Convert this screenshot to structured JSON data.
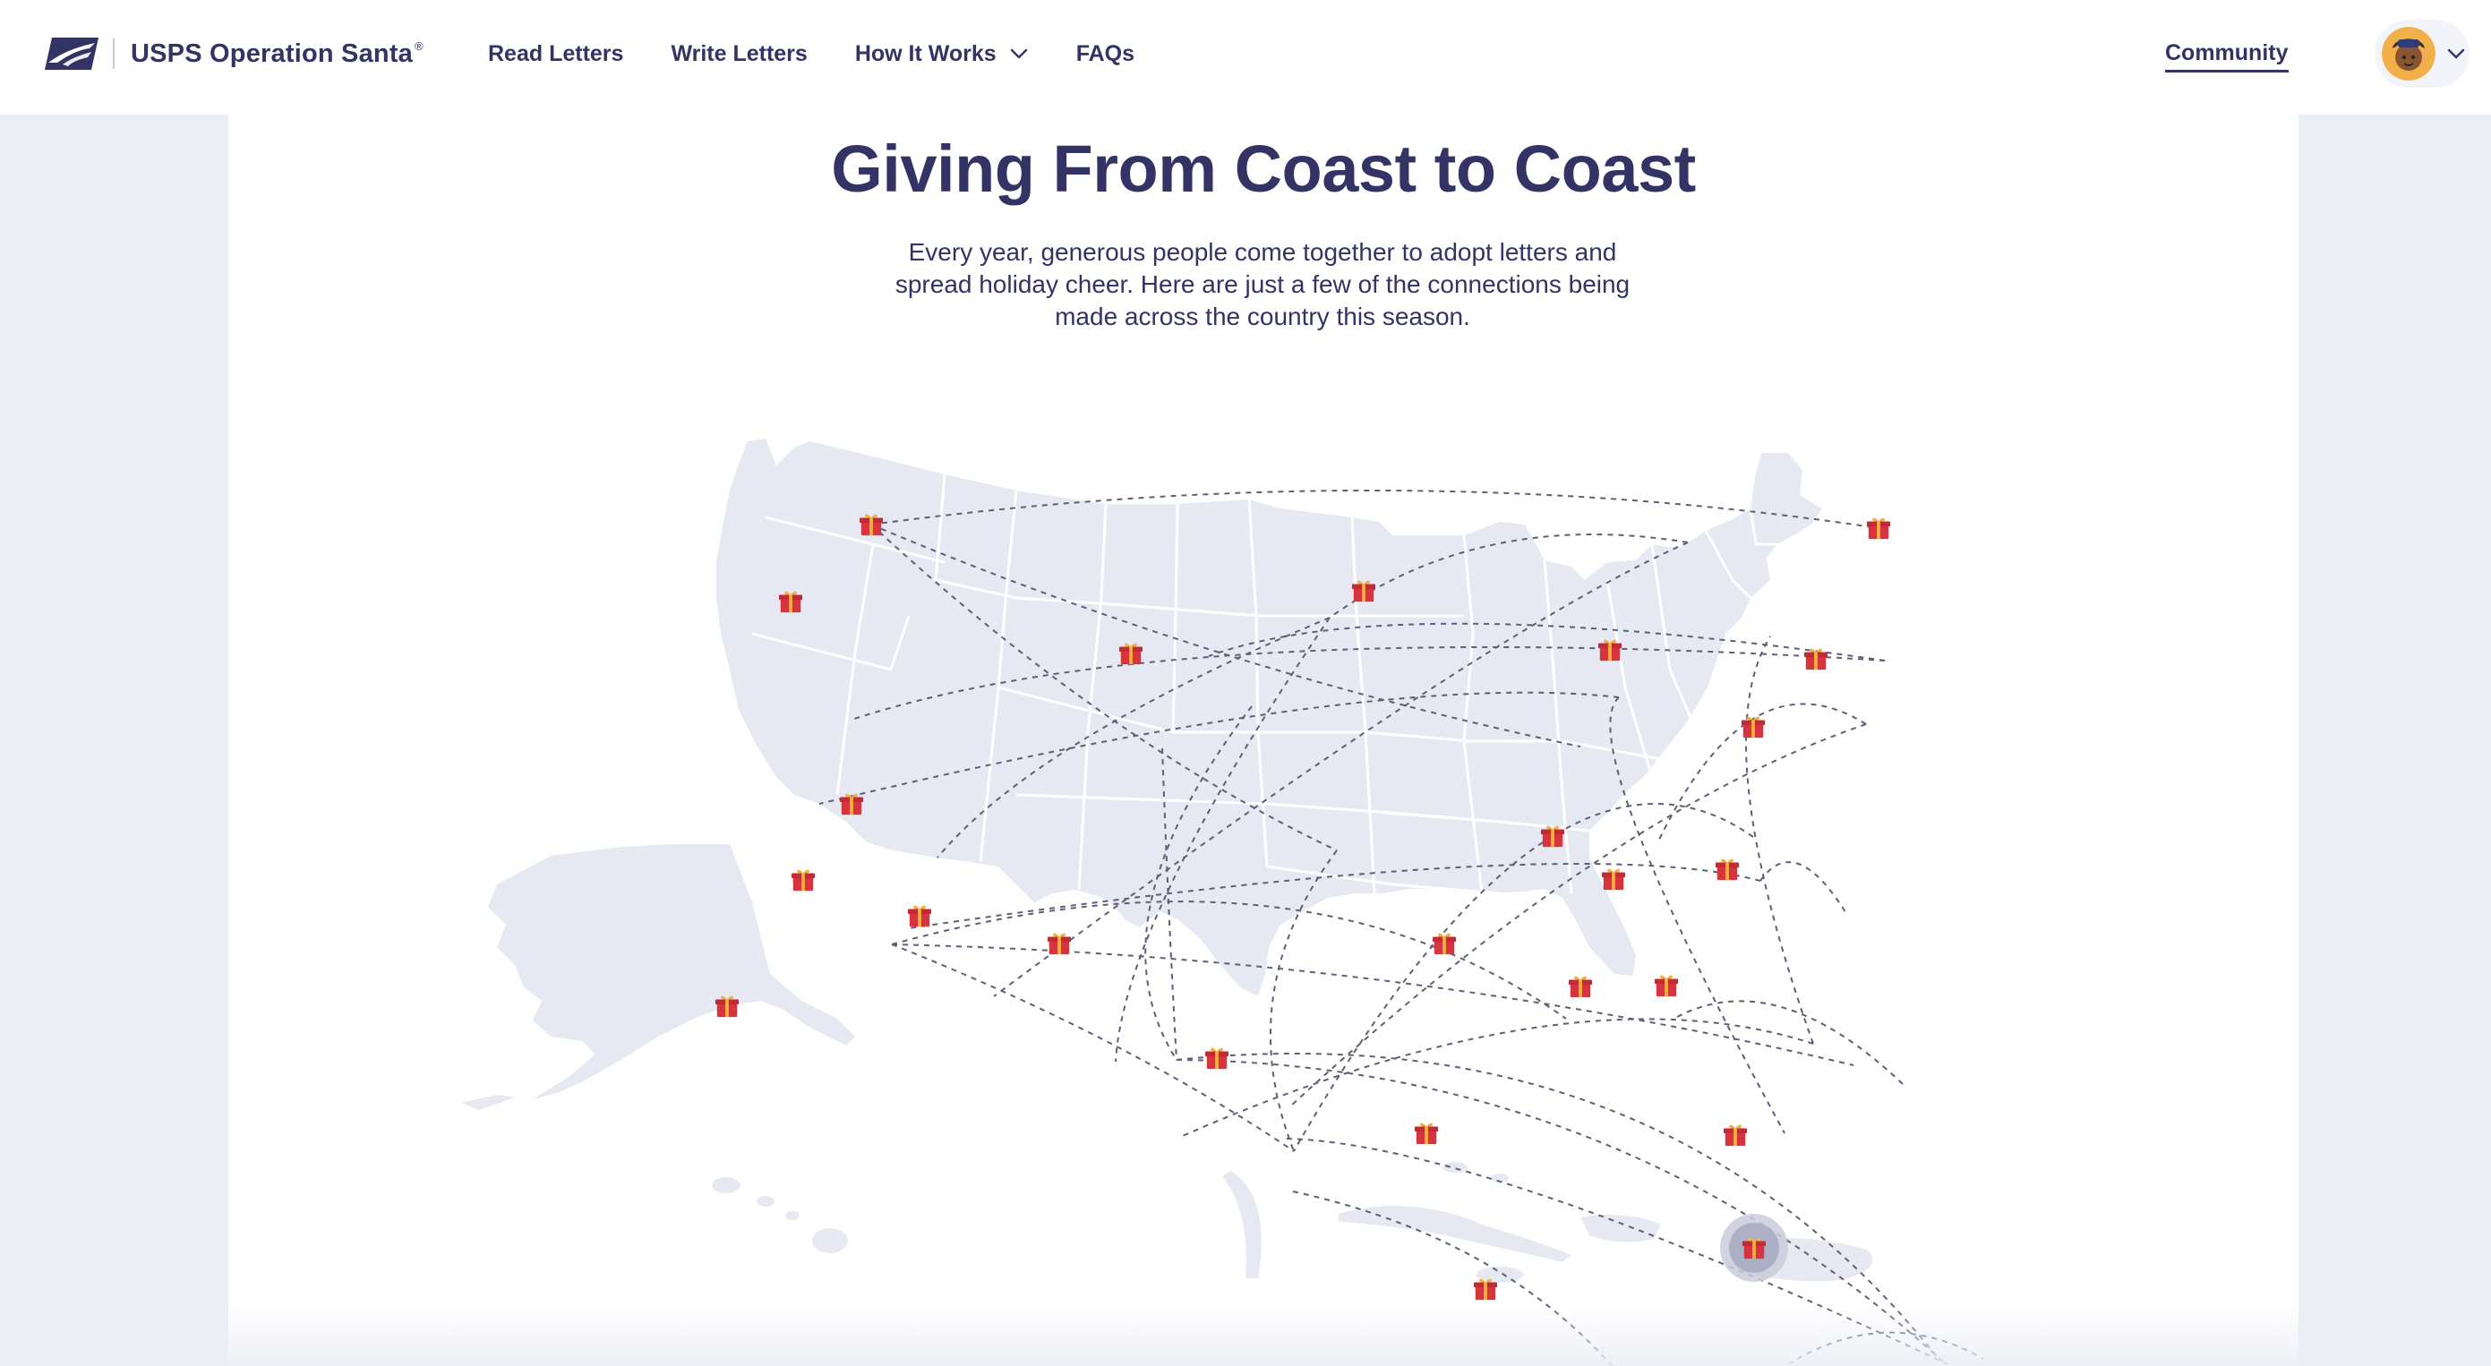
{
  "header": {
    "brand_name": "USPS Operation Santa",
    "brand_mark": "®",
    "nav": [
      {
        "label": "Read Letters"
      },
      {
        "label": "Write Letters"
      },
      {
        "label": "How It Works"
      },
      {
        "label": "FAQs"
      }
    ],
    "community_label": "Community"
  },
  "main": {
    "title": "Giving From Coast to Coast",
    "intro": "Every year, generous people come together to adopt letters and spread holiday cheer. Here are just a few of the connections being made across the country this season."
  },
  "icons": {
    "logo": "usps-eagle-icon",
    "dropdown": "chevron-down-icon",
    "marker": "gift-icon",
    "avatar": "user-avatar"
  },
  "colors": {
    "brand_navy": "#333366",
    "map_fill": "#e6e8f2",
    "gift_red": "#d8343f",
    "gift_ribbon": "#f3b23c",
    "page_bg": "#eceef5"
  }
}
